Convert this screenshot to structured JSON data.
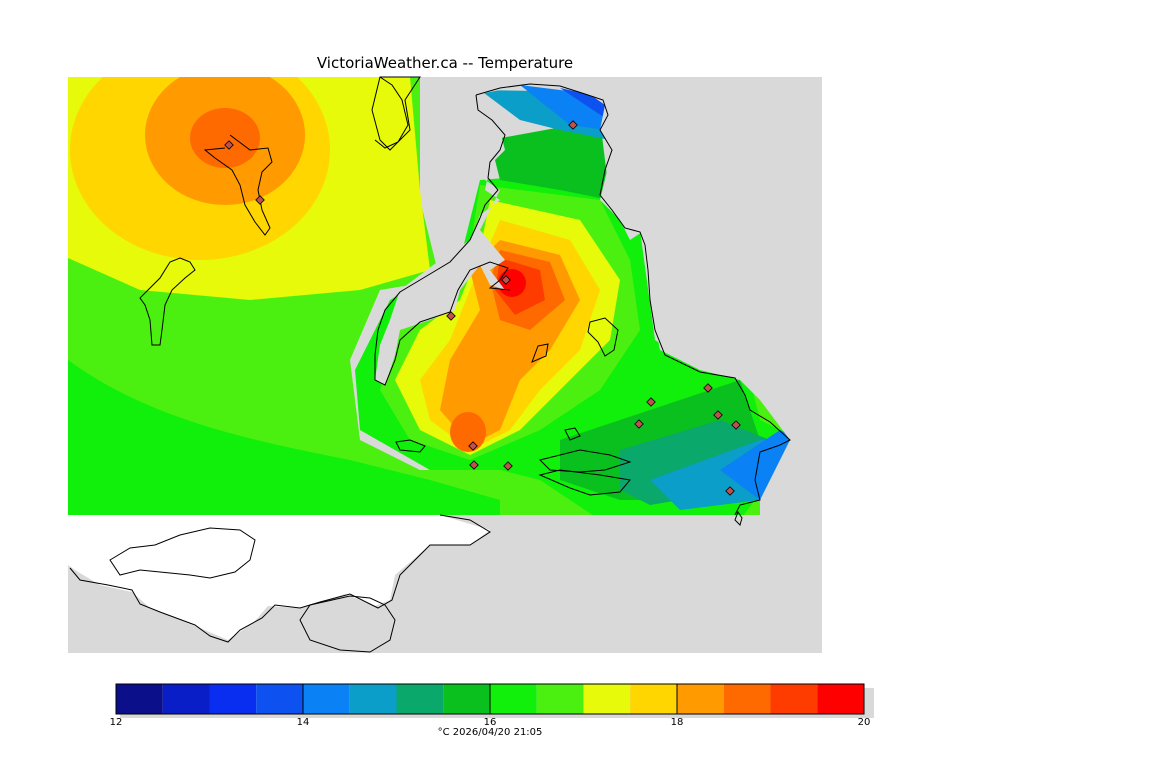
{
  "title": "VictoriaWeather.ca -- Temperature",
  "caption": "°C  2026/04/20 21:05",
  "colorbar": {
    "min": 12,
    "max": 20,
    "tick_labels": [
      "12",
      "14",
      "16",
      "18",
      "20"
    ],
    "tick_values": [
      12,
      14,
      16,
      18,
      20
    ],
    "colors": [
      "#0b0f8a",
      "#0a1ec8",
      "#0a2ef0",
      "#0d52f0",
      "#0a82f5",
      "#0a9ec8",
      "#0aa86a",
      "#0ac01e",
      "#10f00a",
      "#4cf010",
      "#e6fa0a",
      "#ffd600",
      "#ff9a00",
      "#ff6a00",
      "#ff3c00",
      "#ff0000"
    ]
  },
  "map": {
    "land_color": "#d9d9d9",
    "water_color": "#ffffff",
    "station_color": "#c0504d"
  }
}
